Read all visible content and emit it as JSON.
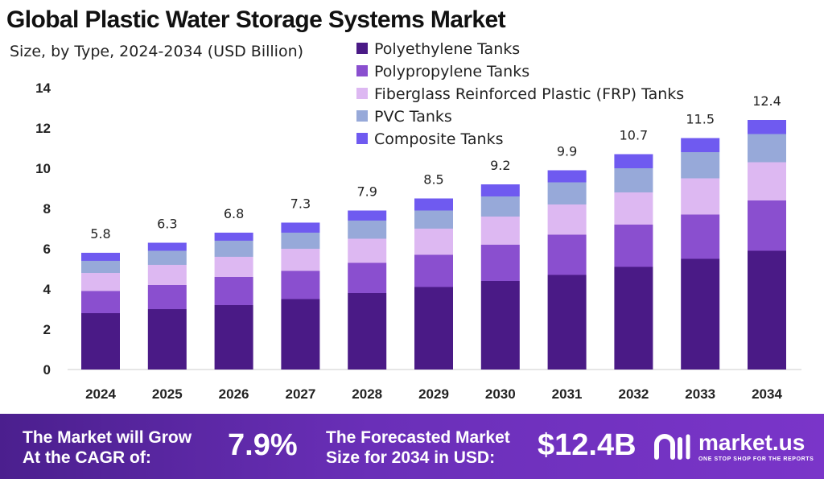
{
  "chart_data": {
    "type": "bar",
    "stacked": true,
    "title": "Global Plastic Water Storage Systems Market",
    "subtitle": "Size, by Type, 2024-2034 (USD Billion)",
    "categories": [
      "2024",
      "2025",
      "2026",
      "2027",
      "2028",
      "2029",
      "2030",
      "2031",
      "2032",
      "2033",
      "2034"
    ],
    "totals": [
      "5.8",
      "6.3",
      "6.8",
      "7.3",
      "7.9",
      "8.5",
      "9.2",
      "9.9",
      "10.7",
      "11.5",
      "12.4"
    ],
    "series": [
      {
        "name": "Polyethylene Tanks",
        "color": "#4a1a86",
        "values": [
          2.8,
          3.0,
          3.2,
          3.5,
          3.8,
          4.1,
          4.4,
          4.7,
          5.1,
          5.5,
          5.9
        ]
      },
      {
        "name": "Polypropylene Tanks",
        "color": "#8a4fcf",
        "values": [
          1.1,
          1.2,
          1.4,
          1.4,
          1.5,
          1.6,
          1.8,
          2.0,
          2.1,
          2.2,
          2.5
        ]
      },
      {
        "name": "Fiberglass Reinforced Plastic (FRP) Tanks",
        "color": "#ddb8f2",
        "values": [
          0.9,
          1.0,
          1.0,
          1.1,
          1.2,
          1.3,
          1.4,
          1.5,
          1.6,
          1.8,
          1.9
        ]
      },
      {
        "name": "PVC Tanks",
        "color": "#97a9d9",
        "values": [
          0.6,
          0.7,
          0.8,
          0.8,
          0.9,
          0.9,
          1.0,
          1.1,
          1.2,
          1.3,
          1.4
        ]
      },
      {
        "name": "Composite Tanks",
        "color": "#6f5af0",
        "values": [
          0.4,
          0.4,
          0.4,
          0.5,
          0.5,
          0.6,
          0.6,
          0.6,
          0.7,
          0.7,
          0.7
        ]
      }
    ],
    "yticks": [
      "0",
      "2",
      "4",
      "6",
      "8",
      "10",
      "12",
      "14"
    ],
    "ylim": [
      0,
      14
    ],
    "xlabel": "",
    "ylabel": "",
    "grid": false,
    "legend_position": "top-center"
  },
  "footer": {
    "cagr_text_line1": "The Market will Grow",
    "cagr_text_line2": "At the CAGR of:",
    "cagr_value": "7.9%",
    "forecast_text_line1": "The Forecasted Market",
    "forecast_text_line2": "Size for 2034 in USD:",
    "forecast_value": "$12.4B",
    "brand_name": "market.us",
    "brand_tagline": "ONE STOP SHOP FOR THE REPORTS"
  }
}
